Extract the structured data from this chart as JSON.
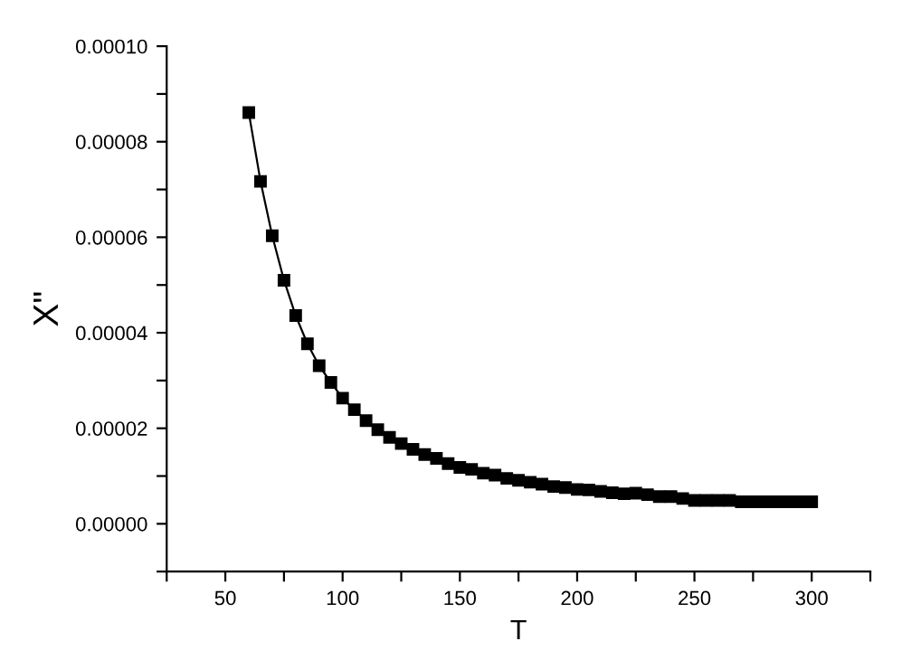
{
  "chart_data": {
    "type": "line",
    "xlabel": "T",
    "ylabel": "X\"",
    "x": [
      60,
      65,
      70,
      75,
      80,
      85,
      90,
      95,
      100,
      105,
      110,
      115,
      120,
      125,
      130,
      135,
      140,
      145,
      150,
      155,
      160,
      165,
      170,
      175,
      180,
      185,
      190,
      195,
      200,
      205,
      210,
      215,
      220,
      225,
      230,
      235,
      240,
      245,
      250,
      255,
      260,
      265,
      270,
      275,
      280,
      285,
      290,
      295,
      300
    ],
    "series": [
      {
        "color": "#000000",
        "values": [
          8.61e-05,
          7.17e-05,
          6.03e-05,
          5.1e-05,
          4.36e-05,
          3.77e-05,
          3.31e-05,
          2.96e-05,
          2.63e-05,
          2.39e-05,
          2.16e-05,
          1.97e-05,
          1.81e-05,
          1.68e-05,
          1.56e-05,
          1.45e-05,
          1.37e-05,
          1.26e-05,
          1.18e-05,
          1.14e-05,
          1.06e-05,
          1.02e-05,
          9.5e-06,
          9.1e-06,
          8.7e-06,
          8.3e-06,
          7.8e-06,
          7.6e-06,
          7.2e-06,
          7.1e-06,
          6.8e-06,
          6.5e-06,
          6.3e-06,
          6.4e-06,
          6.1e-06,
          5.7e-06,
          5.7e-06,
          5.3e-06,
          4.9e-06,
          4.9e-06,
          4.9e-06,
          4.9e-06,
          4.6e-06,
          4.6e-06,
          4.6e-06,
          4.6e-06,
          4.6e-06,
          4.6e-06,
          4.6e-06
        ]
      }
    ],
    "marker": "square",
    "line_style": "solid",
    "grid": false,
    "xlim": [
      25,
      325
    ],
    "xticks": [
      {
        "value": 25,
        "label": null
      },
      50,
      {
        "value": 75,
        "label": null
      },
      100,
      {
        "value": 125,
        "label": null
      },
      150,
      {
        "value": 175,
        "label": null
      },
      200,
      {
        "value": 225,
        "label": null
      },
      250,
      {
        "value": 275,
        "label": null
      },
      300,
      {
        "value": 325,
        "label": null
      }
    ],
    "ylim": [
      -1e-05,
      0.0001
    ],
    "yticks": [
      {
        "value": -1e-05,
        "label": null
      },
      {
        "value": 0,
        "label": "0.00000"
      },
      {
        "value": 1e-05,
        "label": null
      },
      {
        "value": 2e-05,
        "label": "0.00002"
      },
      {
        "value": 3e-05,
        "label": null
      },
      {
        "value": 4e-05,
        "label": "0.00004"
      },
      {
        "value": 5e-05,
        "label": null
      },
      {
        "value": 6e-05,
        "label": "0.00006"
      },
      {
        "value": 7e-05,
        "label": null
      },
      {
        "value": 8e-05,
        "label": "0.00008"
      },
      {
        "value": 9e-05,
        "label": null
      },
      {
        "value": 0.0001,
        "label": "0.00010"
      }
    ]
  }
}
